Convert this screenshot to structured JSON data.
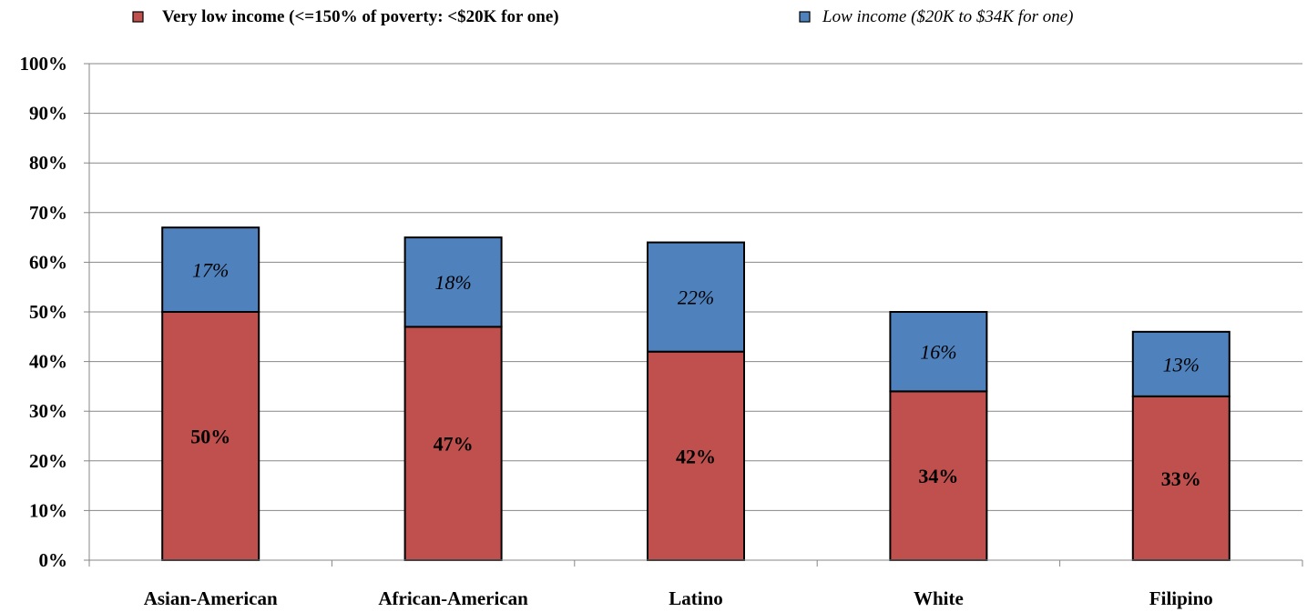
{
  "colors": {
    "very_low": "#C0504D",
    "low": "#4F81BD",
    "gridline": "#878787",
    "axis": "#878787",
    "bar_outline": "#000000",
    "text": "#000000"
  },
  "chart_data": {
    "type": "bar",
    "stacked": true,
    "title": "",
    "xlabel": "",
    "ylabel": "",
    "ylim": [
      0,
      100
    ],
    "y_ticks": [
      "0%",
      "10%",
      "20%",
      "30%",
      "40%",
      "50%",
      "60%",
      "70%",
      "80%",
      "90%",
      "100%"
    ],
    "grid": true,
    "legend_position": "top",
    "categories": [
      "Asian-American",
      "African-American",
      "Latino",
      "White",
      "Filipino"
    ],
    "series": [
      {
        "name": "Very low income (<=150% of poverty: <$20K for one)",
        "values": [
          50,
          47,
          42,
          34,
          33
        ],
        "labels": [
          "50%",
          "47%",
          "42%",
          "34%",
          "33%"
        ],
        "color": "#C0504D",
        "label_style": "bold"
      },
      {
        "name": "Low income ($20K to $34K for one)",
        "values": [
          17,
          18,
          22,
          16,
          13
        ],
        "labels": [
          "17%",
          "18%",
          "22%",
          "16%",
          "13%"
        ],
        "color": "#4F81BD",
        "label_style": "italic"
      }
    ]
  }
}
